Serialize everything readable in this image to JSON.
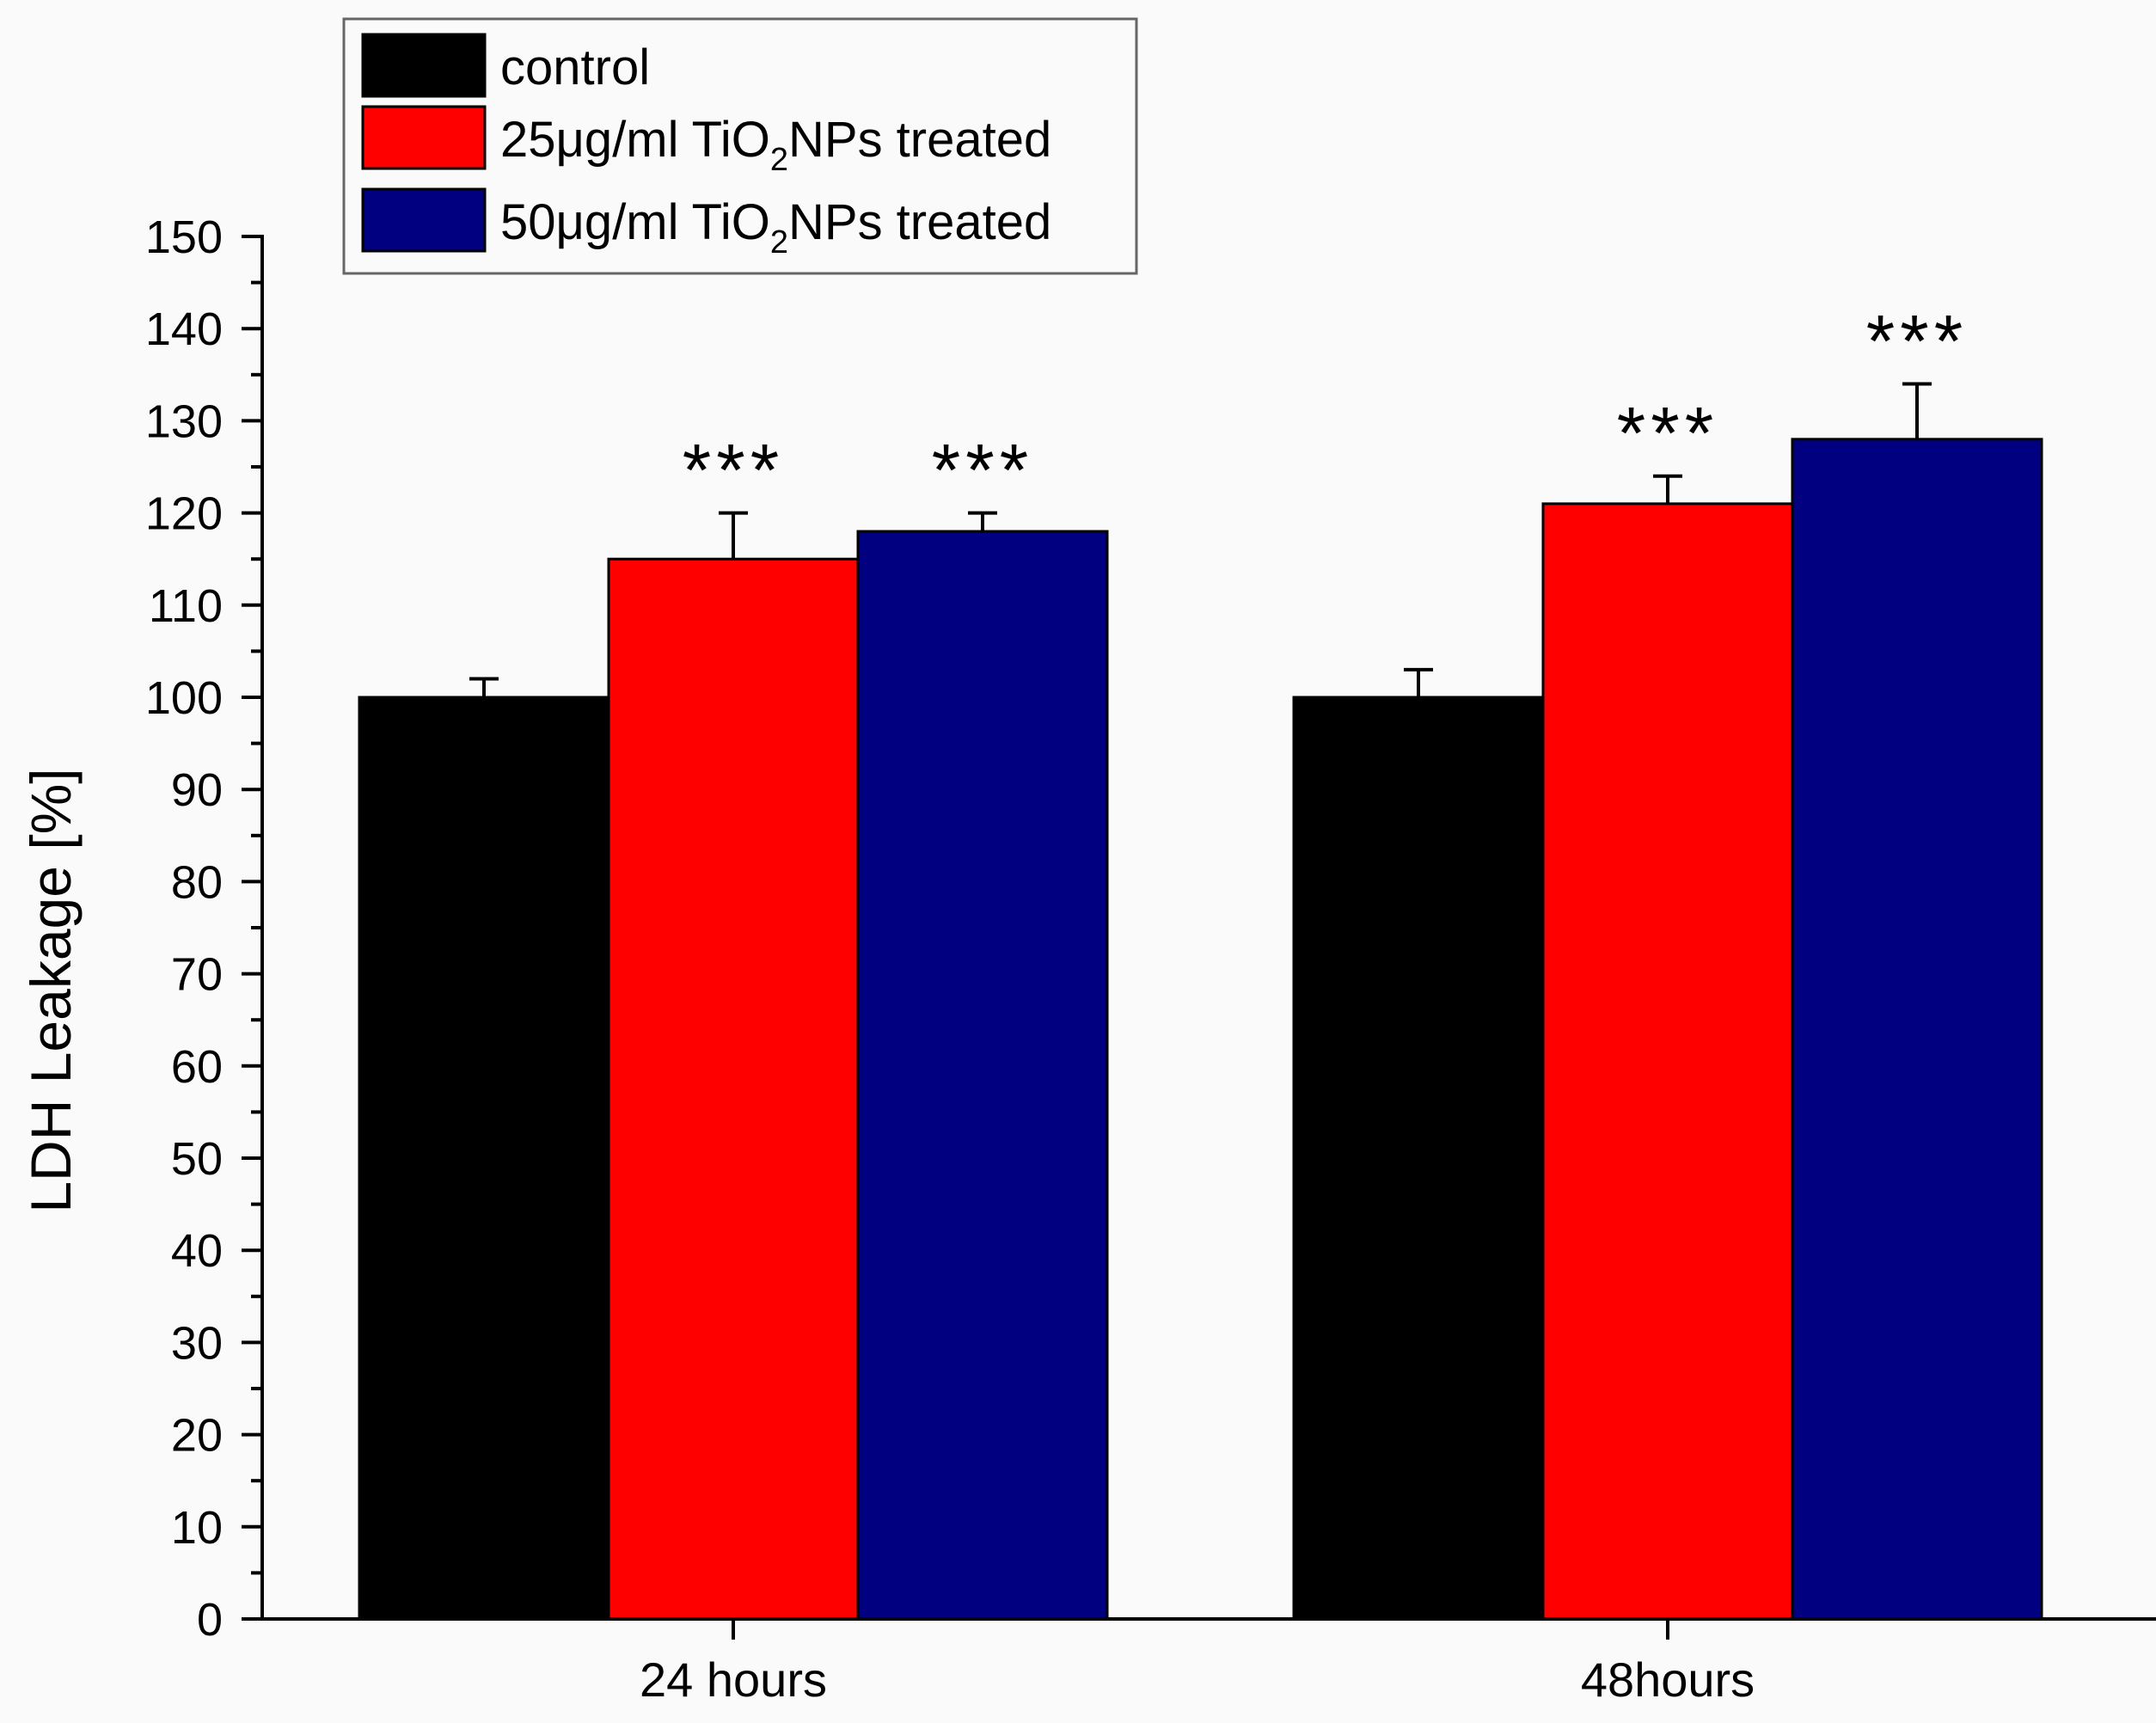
{
  "chart_data": {
    "type": "bar",
    "title": "",
    "xlabel": "",
    "ylabel": "LDH Leakage [%]",
    "ylim": [
      0,
      150
    ],
    "yticks": [
      0,
      10,
      20,
      30,
      40,
      50,
      60,
      70,
      80,
      90,
      100,
      110,
      120,
      130,
      140,
      150
    ],
    "categories": [
      "24 hours",
      "48hours"
    ],
    "series": [
      {
        "name": "control",
        "color": "#000000",
        "values": [
          100,
          100
        ],
        "errors": [
          2,
          3
        ],
        "annotations": [
          "",
          ""
        ]
      },
      {
        "name_prefix": "25μg/ml TiO",
        "name_sub": "2",
        "name_suffix": "NPs treated",
        "name": "25μg/ml TiO2NPs treated",
        "color": "#ff0000",
        "values": [
          115,
          121
        ],
        "errors": [
          5,
          3
        ],
        "annotations": [
          "***",
          "***"
        ]
      },
      {
        "name_prefix": "50μg/ml TiO",
        "name_sub": "2",
        "name_suffix": "NPs treated",
        "name": "50μg/ml TiO2NPs treated",
        "color": "#000080",
        "values": [
          118,
          128
        ],
        "errors": [
          2,
          6
        ],
        "annotations": [
          "***",
          "***"
        ]
      }
    ],
    "legend_position": "top-left",
    "grid": false
  }
}
